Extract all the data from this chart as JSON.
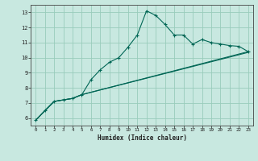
{
  "xlabel": "Humidex (Indice chaleur)",
  "bg_color": "#c8e8e0",
  "grid_color": "#99ccbb",
  "line_color": "#006655",
  "xlim": [
    -0.5,
    23.5
  ],
  "ylim": [
    5.5,
    13.5
  ],
  "xticks": [
    0,
    1,
    2,
    3,
    4,
    5,
    6,
    7,
    8,
    9,
    10,
    11,
    12,
    13,
    14,
    15,
    16,
    17,
    18,
    19,
    20,
    21,
    22,
    23
  ],
  "yticks": [
    6,
    7,
    8,
    9,
    10,
    11,
    12,
    13
  ],
  "line1_x": [
    0,
    1,
    2,
    3,
    4,
    5,
    6,
    7,
    8,
    9,
    10,
    11,
    12,
    13,
    14,
    15,
    16,
    17,
    18,
    19,
    20,
    21,
    22,
    23
  ],
  "line1_y": [
    5.85,
    6.5,
    7.1,
    7.2,
    7.3,
    7.55,
    8.55,
    9.2,
    9.7,
    10.0,
    10.7,
    11.5,
    13.1,
    12.8,
    12.2,
    11.5,
    11.5,
    10.9,
    11.2,
    11.0,
    10.9,
    10.8,
    10.75,
    10.4
  ],
  "line2_x": [
    0,
    2,
    3,
    4,
    5,
    23
  ],
  "line2_y": [
    5.85,
    7.1,
    7.2,
    7.3,
    7.55,
    10.4
  ],
  "line3_x": [
    0,
    2,
    3,
    4,
    5,
    23
  ],
  "line3_y": [
    5.85,
    7.1,
    7.2,
    7.3,
    7.55,
    10.35
  ]
}
